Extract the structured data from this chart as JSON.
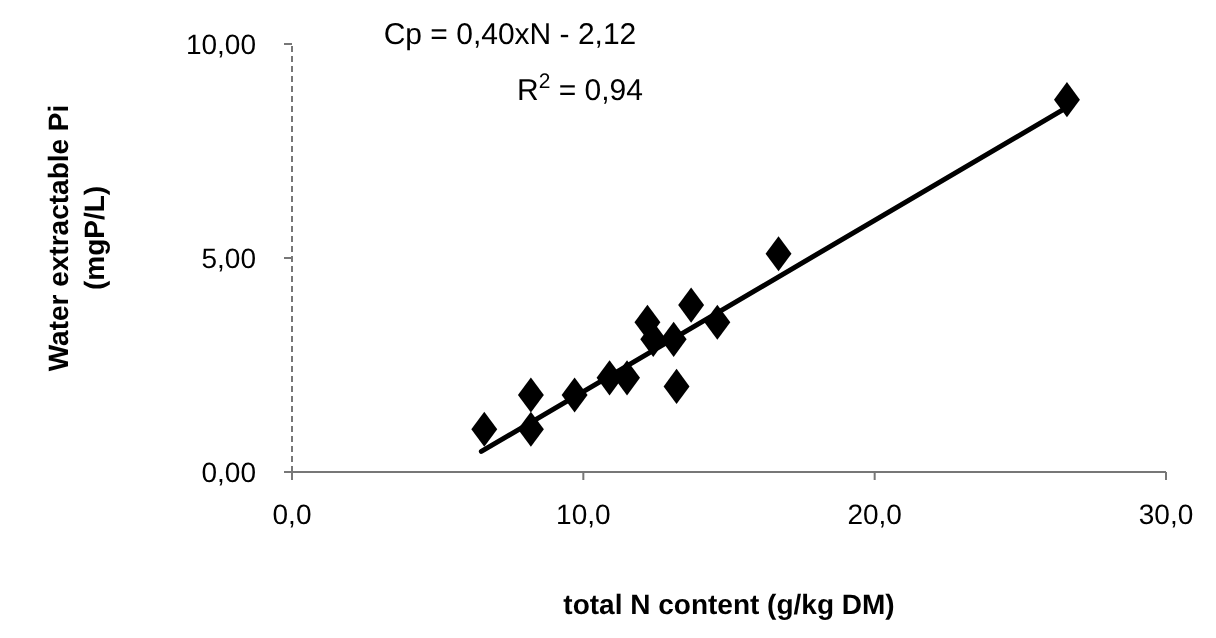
{
  "chart_data": {
    "type": "scatter",
    "xlabel": "total N content (g/kg DM)",
    "ylabel": "Water extractable Pi (mgP/L)",
    "annotations": [
      "Cp = 0,40xN - 2,12",
      "R$^{2}$ = 0,94"
    ],
    "xlim": [
      0,
      30
    ],
    "ylim": [
      0,
      10
    ],
    "xticks": [
      {
        "value": 0,
        "label": "0,0"
      },
      {
        "value": 10,
        "label": "10,0"
      },
      {
        "value": 20,
        "label": "20,0"
      },
      {
        "value": 30,
        "label": "30,0"
      }
    ],
    "yticks": [
      {
        "value": 0,
        "label": "0,00"
      },
      {
        "value": 5,
        "label": "5,00"
      },
      {
        "value": 10,
        "label": "10,00"
      }
    ],
    "grid": false,
    "series": [
      {
        "marker": "diamond",
        "color": "#000000",
        "x": [
          6.6,
          8.2,
          8.2,
          9.7,
          10.9,
          11.5,
          12.2,
          12.4,
          13.1,
          13.2,
          13.7,
          14.6,
          16.7,
          26.6
        ],
        "values": [
          1.0,
          1.0,
          1.8,
          1.8,
          2.2,
          2.2,
          3.5,
          3.1,
          3.1,
          2.0,
          3.9,
          3.5,
          5.1,
          8.7
        ]
      },
      {
        "type": "line",
        "color": "#000000",
        "x": [
          6.5,
          26.6
        ],
        "values": [
          0.48,
          8.52
        ]
      }
    ]
  }
}
